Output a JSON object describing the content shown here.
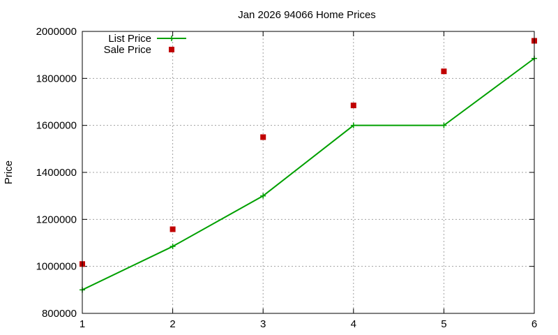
{
  "chart_data": {
    "type": "line",
    "title": "Jan 2026 94066 Home Prices",
    "xlabel": "",
    "ylabel": "Price",
    "x": [
      1,
      2,
      3,
      4,
      5,
      6
    ],
    "xlim": [
      1,
      6
    ],
    "ylim": [
      800000,
      2000000
    ],
    "xticks": [
      "1",
      "2",
      "3",
      "4",
      "5",
      "6"
    ],
    "yticks": [
      "800000",
      "1000000",
      "1200000",
      "1400000",
      "1600000",
      "1800000",
      "2000000"
    ],
    "grid": true,
    "legend_position": "top-left",
    "series": [
      {
        "name": "List Price",
        "style": "line-with-plus-markers",
        "color": "#00a000",
        "values": [
          900000,
          1085000,
          1300000,
          1600000,
          1600000,
          1885000
        ]
      },
      {
        "name": "Sale Price",
        "style": "square-points",
        "color": "#c00000",
        "values": [
          1010000,
          1158000,
          1550000,
          1685000,
          1830000,
          1960000
        ]
      }
    ]
  }
}
